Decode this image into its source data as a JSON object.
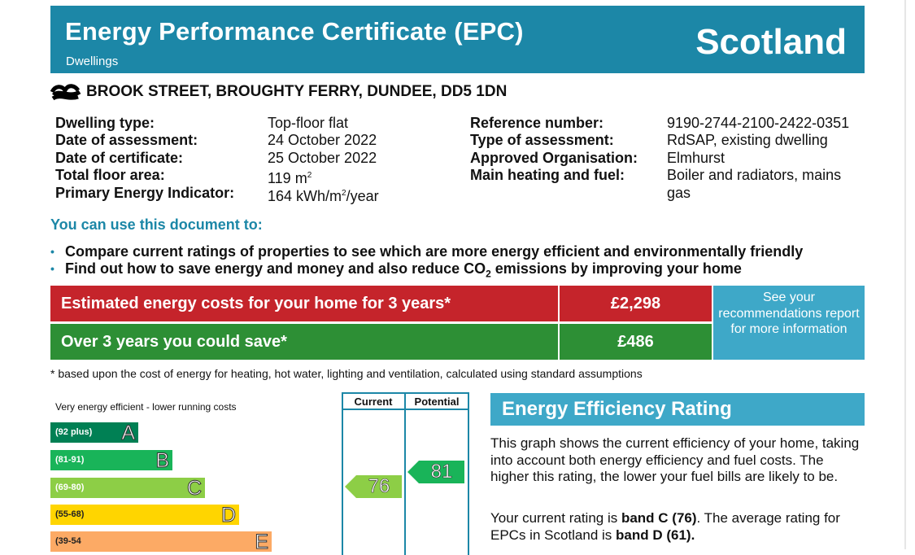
{
  "header": {
    "title": "Energy Performance Certificate (EPC)",
    "subtitle": "Dwellings",
    "country": "Scotland"
  },
  "address": "BROOK STREET, BROUGHTY FERRY, DUNDEE, DD5 1DN",
  "details_left": [
    {
      "label": "Dwelling type:",
      "value": "Top-floor flat"
    },
    {
      "label": "Date of assessment:",
      "value": "24 October 2022"
    },
    {
      "label": "Date of certificate:",
      "value": "25 October 2022"
    },
    {
      "label": "Total floor area:",
      "value": "119 m",
      "sup": "2"
    },
    {
      "label": "Primary Energy Indicator:",
      "value": "164 kWh/m",
      "sup": "2",
      "suffix": "/year"
    }
  ],
  "details_right": [
    {
      "label": "Reference number:",
      "value": "9190-2744-2100-2422-0351"
    },
    {
      "label": "Type of assessment:",
      "value": "RdSAP, existing dwelling"
    },
    {
      "label": "Approved Organisation:",
      "value": "Elmhurst"
    },
    {
      "label": "Main heating and fuel:",
      "value": "Boiler and radiators, mains",
      "value2": "gas"
    }
  ],
  "use": {
    "title": "You can use this document to:",
    "bullet1": "Compare current ratings of properties to see which are more energy efficient and environmentally friendly",
    "bullet2_pre": "Find out how to save energy and money and also reduce CO",
    "bullet2_sub": "2",
    "bullet2_post": " emissions by improving your home"
  },
  "costs": {
    "estimated_label": "Estimated energy costs for your home for 3 years*",
    "estimated_value": "£2,298",
    "save_label": "Over 3 years you could save*",
    "save_value": "£486",
    "recommendations": "See your recommendations report for more information"
  },
  "footnote": "* based upon the cost of energy for heating, hot water, lighting and ventilation, calculated using standard assumptions",
  "chart_data": {
    "type": "bar",
    "title": "Energy Efficiency Rating",
    "top_label": "Very energy efficient - lower running costs",
    "columns": [
      "Current",
      "Potential"
    ],
    "bands": [
      {
        "letter": "A",
        "range": "(92 plus)",
        "color": "#008054"
      },
      {
        "letter": "B",
        "range": "(81-91)",
        "color": "#19b459"
      },
      {
        "letter": "C",
        "range": "(69-80)",
        "color": "#8dce46"
      },
      {
        "letter": "D",
        "range": "(55-68)",
        "color": "#ffd500"
      },
      {
        "letter": "E",
        "range": "(39-54",
        "color": "#fcaa65"
      }
    ],
    "current": 76,
    "current_band": "C",
    "potential": 81,
    "potential_band": "B"
  },
  "eer": {
    "para1": "This graph shows the current efficiency of your home, taking into account both energy efficiency and fuel costs. The higher this rating, the lower your fuel bills are likely to be.",
    "para2_pre": "Your current rating is ",
    "para2_b1": "band C (76)",
    "para2_mid": ". The average rating for EPCs in Scotland is ",
    "para2_b2": "band D (61)."
  }
}
